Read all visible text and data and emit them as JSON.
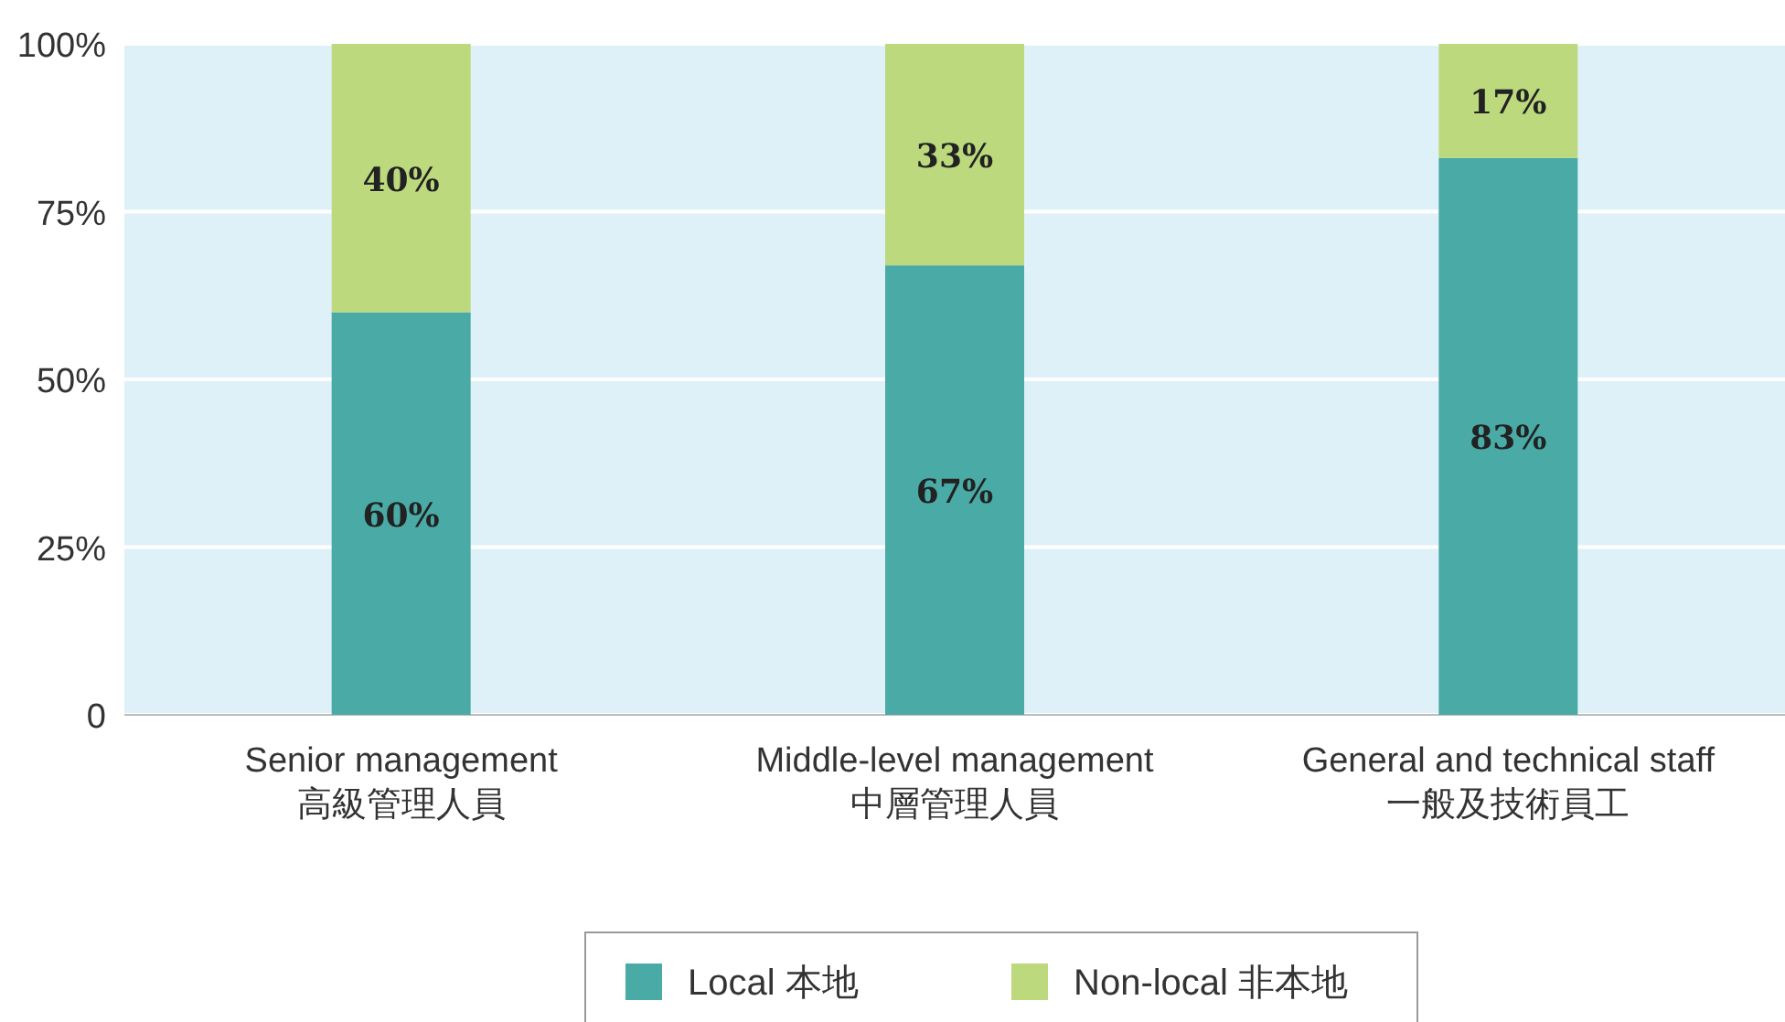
{
  "chart_data": {
    "type": "bar",
    "stacked": true,
    "categories": [
      "Senior management\n高級管理人員",
      "Middle-level management\n中層管理人員",
      "General and technical staff\n一般及技術員工"
    ],
    "series": [
      {
        "name": "Local 本地",
        "color": "#4aaba6",
        "values": [
          60,
          67,
          83
        ],
        "value_labels": [
          "60%",
          "67%",
          "83%"
        ]
      },
      {
        "name": "Non-local 非本地",
        "color": "#bcd97e",
        "values": [
          40,
          33,
          17
        ],
        "value_labels": [
          "40%",
          "33%",
          "17%"
        ]
      }
    ],
    "ylim": [
      0,
      100
    ],
    "yticks": [
      0,
      {
        "value": 25,
        "label": "25%"
      },
      {
        "value": 50,
        "label": "50%"
      },
      {
        "value": 75,
        "label": "75%"
      },
      {
        "value": 100,
        "label": "100%"
      }
    ],
    "grid": "y",
    "legend": "bottom"
  }
}
